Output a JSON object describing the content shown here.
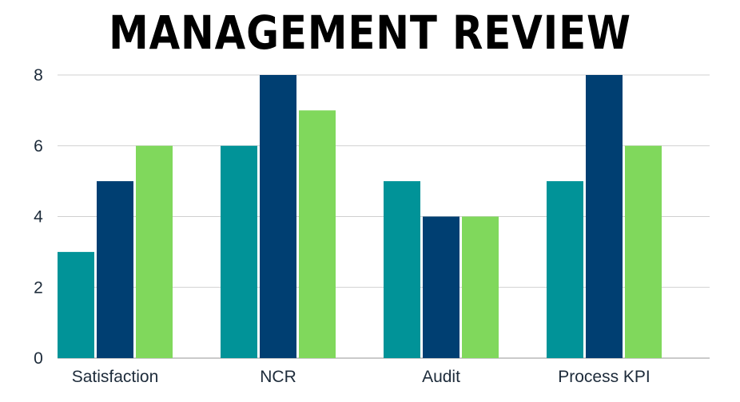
{
  "chart_data": {
    "type": "bar",
    "title": "MANAGEMENT REVIEW",
    "categories": [
      "Satisfaction",
      "NCR",
      "Audit",
      "Process KPI"
    ],
    "series": [
      {
        "values": [
          3,
          6,
          5,
          5
        ],
        "color": "#019398"
      },
      {
        "values": [
          5,
          8,
          4,
          8
        ],
        "color": "#003f72"
      },
      {
        "values": [
          6,
          7,
          4,
          6
        ],
        "color": "#80d85c"
      }
    ],
    "ylim": [
      0,
      8
    ],
    "yticks": [
      0,
      2,
      4,
      6,
      8
    ],
    "grid": true,
    "legend": "none",
    "gridline_color": "#d0d0d0",
    "axis_color": "#b8b8b8"
  }
}
